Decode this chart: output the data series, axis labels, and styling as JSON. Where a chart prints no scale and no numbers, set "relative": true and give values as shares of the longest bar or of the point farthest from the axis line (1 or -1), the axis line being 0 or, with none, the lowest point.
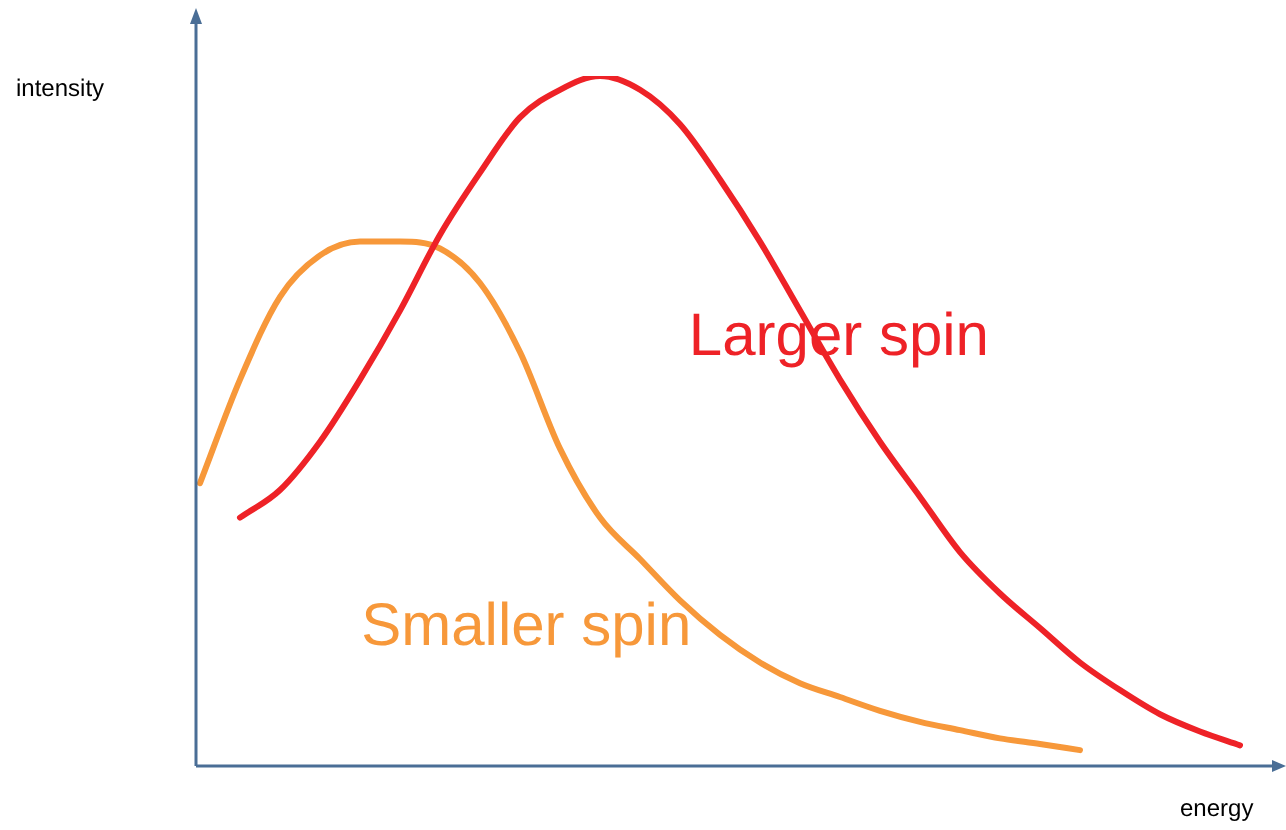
{
  "chart_data": {
    "type": "line",
    "relative": true,
    "xlabel": "energy",
    "ylabel": "intensity",
    "legend": false,
    "grid": false,
    "marker": "none",
    "line_style": "solid",
    "categories": [
      null,
      null,
      null,
      null,
      null,
      null,
      null,
      null,
      null,
      null,
      null,
      null,
      null,
      null,
      null,
      null,
      null,
      null,
      null,
      null,
      null,
      null,
      null,
      null,
      null,
      null,
      null
    ],
    "series": [
      {
        "name": "Larger spin",
        "color": "#ee2227",
        "values": [
          null,
          0.36,
          0.4,
          0.47,
          0.56,
          0.66,
          0.77,
          0.86,
          0.94,
          0.98,
          1,
          0.98,
          0.93,
          0.85,
          0.76,
          0.66,
          0.56,
          0.47,
          0.39,
          0.31,
          0.25,
          0.2,
          0.15,
          0.11,
          0.075,
          0.05,
          0.03
        ]
      },
      {
        "name": "Smaller spin",
        "color": "#f7983a",
        "values": [
          0.41,
          0.56,
          0.68,
          0.74,
          0.76,
          0.76,
          0.75,
          0.7,
          0.6,
          0.46,
          0.36,
          0.3,
          0.24,
          0.19,
          0.15,
          0.12,
          0.1,
          0.08,
          0.064,
          0.052,
          0.04,
          0.032,
          0.023,
          null,
          null,
          null,
          null
        ]
      }
    ]
  }
}
